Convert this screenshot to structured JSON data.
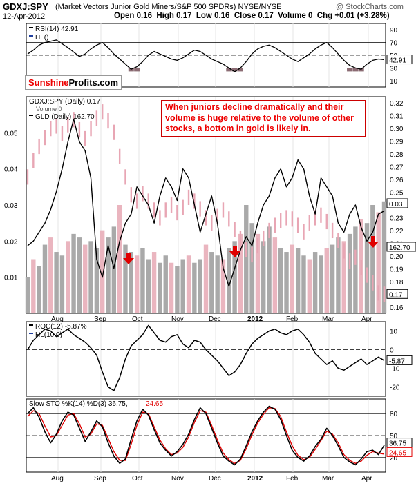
{
  "header": {
    "symbol": "GDXJ:SPY",
    "description": "(Market Vectors Junior Gold Miners/S&P 500 SPDRs) NYSE/NYSE",
    "watermark": "@ StockCharts.com",
    "date": "12-Apr-2012",
    "ohlc": "Open 0.16  High 0.17  Low 0.16  Close 0.17  Volume 0  Chg +0.01 (+3.28%)"
  },
  "logo": {
    "part1": "Sunshine",
    "part2": "Profits",
    "part3": ".com"
  },
  "callout": "When juniors decline dramatically and their volume is huge relative to the volume of other stocks, a bottom in gold is likely in.",
  "colors": {
    "price_bar": "#e8a6b4",
    "volume_bar": "#a9a9a9",
    "volume_bar_red": "#eab5bf",
    "line": "#000000",
    "stoch_d": "#e00000",
    "arrow": "#e00000",
    "rsi_fill": "#8b6b73"
  },
  "x_labels": [
    "Aug",
    "Sep",
    "Oct",
    "Nov",
    "Dec",
    "2012",
    "Feb",
    "Mar",
    "Apr"
  ],
  "chart_data": [
    {
      "type": "line",
      "panel": "rsi",
      "legend": [
        "RSI(14) 42.91",
        "HL()"
      ],
      "ylim": [
        0,
        100
      ],
      "y_ticks": [
        10,
        30,
        50,
        70,
        90
      ],
      "reference_lines": [
        30,
        70
      ],
      "last_value_label": "42.91",
      "series": [
        {
          "name": "RSI(14)",
          "values": [
            52,
            58,
            66,
            70,
            72,
            74,
            68,
            62,
            55,
            48,
            52,
            60,
            66,
            70,
            62,
            52,
            44,
            36,
            28,
            32,
            40,
            50,
            56,
            52,
            48,
            44,
            42,
            46,
            52,
            58,
            56,
            50,
            44,
            40,
            36,
            30,
            24,
            30,
            40,
            52,
            60,
            64,
            66,
            62,
            56,
            50,
            44,
            40,
            46,
            52,
            60,
            66,
            70,
            62,
            52,
            42,
            34,
            30,
            28,
            36,
            42,
            44,
            42.91
          ]
        }
      ]
    },
    {
      "type": "bar",
      "panel": "price",
      "legend": [
        "GDXJ:SPY (Daily) 0.17",
        "Volume 0",
        "GLD (Daily) 162.70"
      ],
      "y_ticks_right": [
        0.16,
        0.17,
        0.18,
        0.19,
        0.2,
        0.21,
        0.22,
        0.23,
        0.24,
        0.25,
        0.26,
        0.27,
        0.28,
        0.29,
        0.3,
        0.31,
        0.32
      ],
      "y_ticks_left": [
        0.01,
        0.02,
        0.03,
        0.04,
        0.05
      ],
      "ylim_right": [
        0.155,
        0.325
      ],
      "ylim_left": [
        0,
        0.06
      ],
      "value_labels": [
        "162.70",
        "0.03",
        "0.17"
      ],
      "series": [
        {
          "name": "GDXJ:SPY (Daily)",
          "values": [
            0.262,
            0.275,
            0.286,
            0.293,
            0.3,
            0.302,
            0.296,
            0.303,
            0.307,
            0.299,
            0.292,
            0.3,
            0.308,
            0.313,
            0.306,
            0.297,
            0.278,
            0.262,
            0.248,
            0.243,
            0.249,
            0.243,
            0.236,
            0.23,
            0.236,
            0.24,
            0.234,
            0.238,
            0.246,
            0.243,
            0.237,
            0.23,
            0.226,
            0.231,
            0.236,
            0.229,
            0.221,
            0.214,
            0.205,
            0.201,
            0.208,
            0.214,
            0.22,
            0.224,
            0.228,
            0.23,
            0.229,
            0.224,
            0.219,
            0.226,
            0.23,
            0.232,
            0.227,
            0.22,
            0.212,
            0.204,
            0.196,
            0.199,
            0.191,
            0.185,
            0.179,
            0.171,
            0.17
          ]
        },
        {
          "name": "Volume",
          "values": [
            0.01,
            0.015,
            0.013,
            0.019,
            0.021,
            0.017,
            0.016,
            0.02,
            0.022,
            0.021,
            0.019,
            0.02,
            0.018,
            0.023,
            0.021,
            0.024,
            0.03,
            0.019,
            0.017,
            0.016,
            0.018,
            0.015,
            0.017,
            0.014,
            0.016,
            0.014,
            0.013,
            0.015,
            0.016,
            0.014,
            0.015,
            0.019,
            0.017,
            0.016,
            0.015,
            0.018,
            0.02,
            0.022,
            0.03,
            0.025,
            0.022,
            0.02,
            0.024,
            0.021,
            0.018,
            0.017,
            0.019,
            0.018,
            0.016,
            0.015,
            0.017,
            0.016,
            0.018,
            0.019,
            0.021,
            0.02,
            0.022,
            0.024,
            0.026,
            0.025,
            0.03,
            0.028,
            0.031
          ]
        },
        {
          "name": "GLD (Daily)",
          "values": [
            155,
            156,
            158,
            160,
            163,
            167,
            172,
            178,
            183,
            178,
            176,
            170,
            152,
            148,
            155,
            150,
            156,
            160,
            162,
            168,
            166,
            164,
            160,
            166,
            170,
            168,
            165,
            172,
            170,
            164,
            158,
            162,
            166,
            160,
            150,
            146,
            150,
            154,
            157,
            155,
            160,
            164,
            166,
            170,
            172,
            168,
            170,
            174,
            172,
            166,
            162,
            170,
            168,
            166,
            160,
            158,
            162,
            164,
            159,
            156,
            158,
            162,
            162.7
          ]
        }
      ]
    },
    {
      "type": "line",
      "panel": "roc",
      "legend": [
        "ROC(12) -5.87%",
        "HL(10.0)"
      ],
      "ylim": [
        -25,
        15
      ],
      "y_ticks": [
        -20,
        -10,
        0,
        10
      ],
      "reference_lines": [
        10,
        0
      ],
      "last_value_label": "-5.87",
      "series": [
        {
          "name": "ROC(12)",
          "values": [
            0,
            5,
            8,
            11,
            10,
            7,
            9,
            11,
            8,
            6,
            4,
            1,
            -3,
            -12,
            -20,
            -22,
            -15,
            -5,
            2,
            5,
            8,
            13,
            9,
            5,
            4,
            7,
            8,
            3,
            1,
            5,
            4,
            0,
            -3,
            -6,
            -10,
            -14,
            -12,
            -8,
            -2,
            3,
            6,
            8,
            10,
            11,
            9,
            8,
            10,
            11,
            8,
            4,
            -2,
            -5,
            -8,
            -6,
            -10,
            -11,
            -9,
            -7,
            -5,
            -8,
            -6,
            -4,
            -5.87
          ]
        }
      ]
    },
    {
      "type": "line",
      "panel": "stochastic",
      "legend": [
        "Slow STO %K(14) %D(3) 36.75,",
        "24.65"
      ],
      "ylim": [
        0,
        100
      ],
      "y_ticks": [
        20,
        50,
        80
      ],
      "reference_lines": [
        80,
        50,
        20
      ],
      "last_value_labels": [
        "36.75",
        "24.65"
      ],
      "series": [
        {
          "name": "%K(14)",
          "values": [
            80,
            88,
            75,
            55,
            40,
            52,
            70,
            82,
            78,
            60,
            42,
            55,
            70,
            62,
            40,
            22,
            12,
            18,
            45,
            70,
            86,
            78,
            58,
            40,
            30,
            22,
            28,
            38,
            52,
            72,
            88,
            80,
            60,
            40,
            22,
            15,
            10,
            18,
            36,
            55,
            70,
            82,
            90,
            86,
            72,
            50,
            30,
            20,
            15,
            22,
            35,
            45,
            60,
            50,
            36,
            20,
            14,
            10,
            18,
            28,
            30,
            24,
            36.75
          ]
        },
        {
          "name": "%D(3)",
          "values": [
            76,
            84,
            80,
            63,
            48,
            50,
            64,
            78,
            80,
            66,
            48,
            52,
            66,
            64,
            46,
            28,
            16,
            16,
            38,
            64,
            82,
            80,
            62,
            44,
            32,
            24,
            26,
            34,
            48,
            68,
            84,
            82,
            64,
            44,
            26,
            17,
            12,
            16,
            32,
            51,
            67,
            79,
            88,
            87,
            76,
            55,
            36,
            23,
            17,
            20,
            31,
            43,
            56,
            52,
            40,
            24,
            16,
            12,
            15,
            23,
            28,
            26,
            24.65
          ]
        }
      ]
    }
  ]
}
